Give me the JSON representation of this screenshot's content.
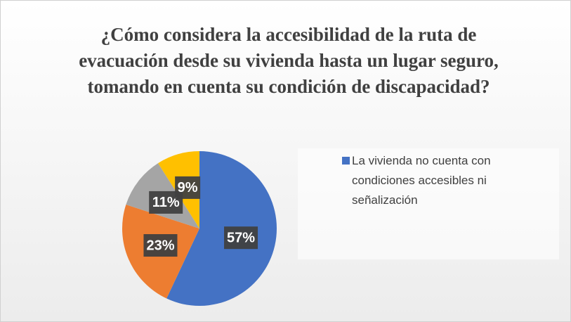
{
  "chart_data": {
    "type": "pie",
    "title": "¿Cómo considera la accesibilidad de la ruta de evacuación desde su vivienda hasta un lugar seguro, tomando en cuenta su condición de discapacidad?",
    "categories": [
      "La vivienda no cuenta con condiciones accesibles ni señalización",
      null,
      null,
      null
    ],
    "values": [
      57,
      23,
      11,
      9
    ],
    "value_labels": [
      "57%",
      "23%",
      "11%",
      "9%"
    ],
    "colors": [
      "#4472c4",
      "#ed7d31",
      "#a5a5a5",
      "#ffc000"
    ],
    "legend": "right"
  }
}
